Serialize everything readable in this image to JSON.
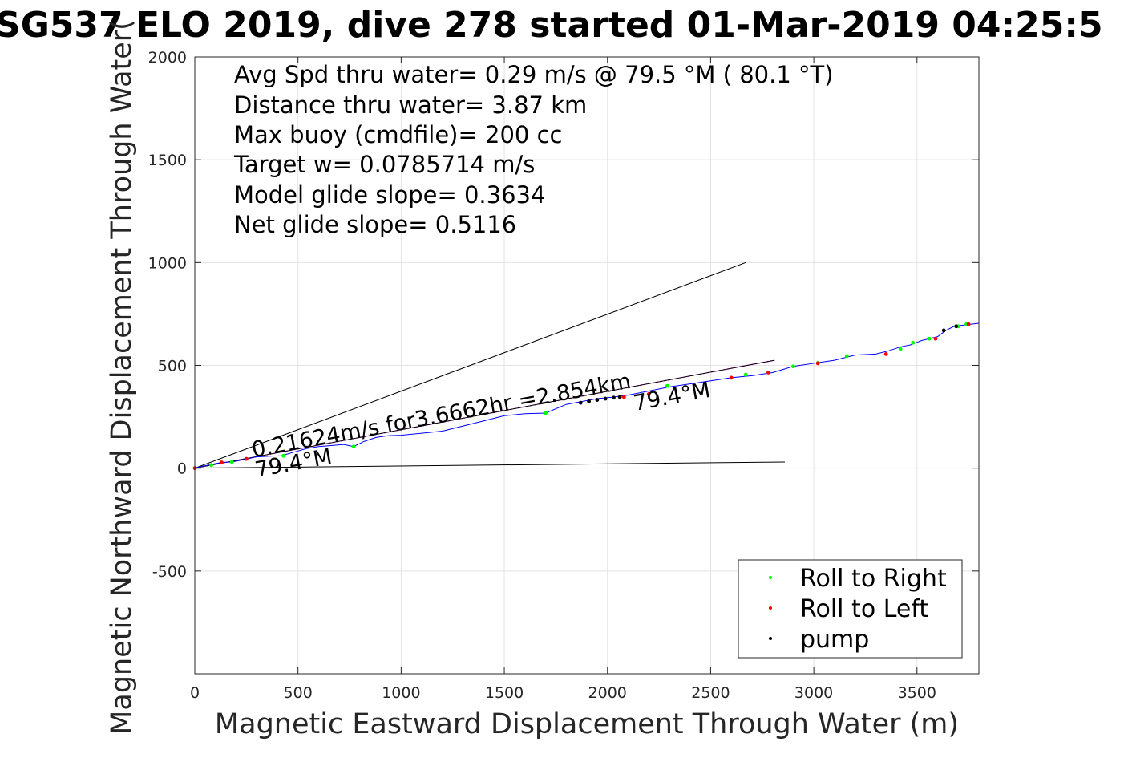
{
  "chart_data": {
    "type": "line",
    "title": "SG537 ELO 2019, dive 278 started 01-Mar-2019 04:25:5",
    "xlabel": "Magnetic Eastward Displacement Through Water (m)",
    "ylabel": "Magnetic Northward Displacement Through Water(",
    "xlim": [
      0,
      3800
    ],
    "ylim": [
      -1000,
      2000
    ],
    "x_ticks": [
      "0",
      "500",
      "1000",
      "1500",
      "2000",
      "2500",
      "3000",
      "3500"
    ],
    "y_ticks": [
      "-500",
      "0",
      "500",
      "1000",
      "1500",
      "2000"
    ],
    "grid": true,
    "info_lines": [
      "Avg Spd thru water=  0.29 m/s @  79.5 °M ( 80.1 °T)",
      "Distance thru water=  3.87 km",
      "Max buoy (cmdfile)= 200 cc",
      "Target w= 0.0785714 m/s",
      "Model glide slope= 0.3634",
      "Net glide slope= 0.5116"
    ],
    "annotations": {
      "speed_label": "0.21624m/s for3.6662hr =2.854km",
      "heading_near": "79.4°M",
      "heading_far": "79.4°M"
    },
    "guide_lines": [
      {
        "x": [
          0,
          2670
        ],
        "y": [
          0,
          1000
        ],
        "color": "#000000"
      },
      {
        "x": [
          0,
          2860
        ],
        "y": [
          0,
          30
        ],
        "color": "#000000"
      },
      {
        "x": [
          0,
          2810
        ],
        "y": [
          0,
          525
        ],
        "color": "#ff00ff",
        "dashed": true
      },
      {
        "x": [
          0,
          2810
        ],
        "y": [
          0,
          525
        ],
        "color": "#000000"
      }
    ],
    "series": [
      {
        "color": "#0000ff",
        "x": [
          0,
          40,
          90,
          130,
          180,
          240,
          300,
          360,
          420,
          480,
          540,
          600,
          660,
          720,
          770,
          820,
          880,
          940,
          1000,
          1100,
          1200,
          1300,
          1400,
          1500,
          1600,
          1700,
          1800,
          1880,
          1950,
          2020,
          2100,
          2200,
          2300,
          2400,
          2500,
          2600,
          2700,
          2800,
          2900,
          3000,
          3100,
          3200,
          3300,
          3360,
          3420,
          3470,
          3520,
          3560,
          3600,
          3640,
          3680,
          3720,
          3760,
          3800
        ],
        "y": [
          0,
          10,
          20,
          28,
          30,
          42,
          55,
          58,
          60,
          78,
          95,
          105,
          110,
          115,
          105,
          130,
          150,
          158,
          160,
          170,
          180,
          205,
          230,
          255,
          265,
          268,
          310,
          325,
          338,
          345,
          355,
          375,
          395,
          410,
          425,
          440,
          450,
          465,
          495,
          510,
          525,
          550,
          555,
          570,
          590,
          600,
          620,
          630,
          640,
          670,
          690,
          695,
          700,
          705
        ]
      }
    ],
    "markers": [
      {
        "name": "Roll to Right",
        "color": "#00ff00",
        "x": [
          80,
          180,
          430,
          770,
          1700,
          2290,
          2670,
          2900,
          3020,
          3160,
          3420,
          3480,
          3560,
          3700,
          3740
        ],
        "y": [
          15,
          30,
          60,
          105,
          268,
          400,
          455,
          495,
          512,
          545,
          580,
          610,
          630,
          690,
          700
        ]
      },
      {
        "name": "Roll to Left",
        "color": "#ff0000",
        "x": [
          0,
          130,
          250,
          2080,
          2200,
          2600,
          2780,
          3020,
          3350,
          3590,
          3750
        ],
        "y": [
          0,
          28,
          45,
          345,
          360,
          440,
          465,
          510,
          555,
          630,
          700
        ]
      },
      {
        "name": "pump",
        "color": "#000000",
        "x": [
          1870,
          1910,
          1950,
          1990,
          2030,
          2060,
          3630,
          3690
        ],
        "y": [
          318,
          325,
          332,
          338,
          343,
          346,
          670,
          690
        ]
      }
    ],
    "legend": {
      "position": "bottom-right",
      "entries": [
        {
          "label": "Roll to Right",
          "color": "#00ff00"
        },
        {
          "label": "Roll to Left",
          "color": "#ff0000"
        },
        {
          "label": "pump",
          "color": "#000000"
        }
      ]
    }
  }
}
